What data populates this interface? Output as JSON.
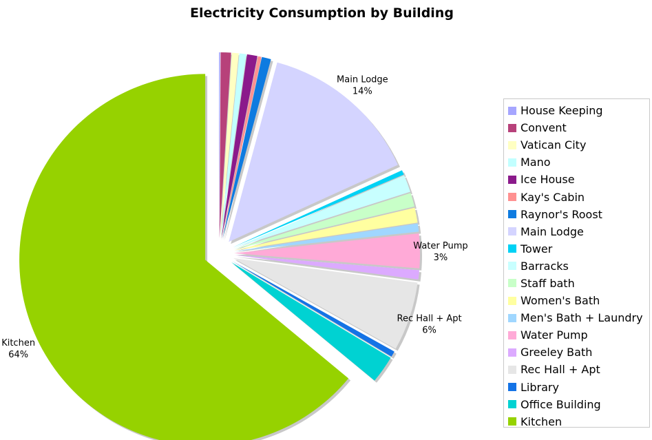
{
  "chart_data": {
    "type": "pie",
    "title": "Electricity Consumption by Building",
    "legend_position": "right",
    "slices": [
      {
        "label": "House Keeping",
        "value": 0.1,
        "color": "#a6a6ff"
      },
      {
        "label": "Convent",
        "value": 0.9,
        "color": "#b7417a"
      },
      {
        "label": "Vatican City",
        "value": 0.6,
        "color": "#ffffc2"
      },
      {
        "label": "Mano",
        "value": 0.6,
        "color": "#c2ffff"
      },
      {
        "label": "Ice House",
        "value": 0.9,
        "color": "#8b1a8b"
      },
      {
        "label": "Kay's Cabin",
        "value": 0.3,
        "color": "#ff9191"
      },
      {
        "label": "Raynor's Roost",
        "value": 0.8,
        "color": "#0e7be0"
      },
      {
        "label": "Main Lodge",
        "value": 14,
        "color": "#d4d4ff"
      },
      {
        "label": "Tower",
        "value": 0.4,
        "color": "#00d2f5"
      },
      {
        "label": "Barracks",
        "value": 1.5,
        "color": "#c8ffff"
      },
      {
        "label": "Staff bath",
        "value": 1.2,
        "color": "#c8ffc8"
      },
      {
        "label": "Women's Bath",
        "value": 1.3,
        "color": "#ffffa0"
      },
      {
        "label": "Men's Bath + Laundry",
        "value": 0.7,
        "color": "#a0d7ff"
      },
      {
        "label": "Water Pump",
        "value": 3,
        "color": "#ffaad7"
      },
      {
        "label": "Greeley Bath",
        "value": 0.8,
        "color": "#dcaaff"
      },
      {
        "label": "Rec Hall + Apt",
        "value": 6,
        "color": "#e6e6e6"
      },
      {
        "label": "Library",
        "value": 0.5,
        "color": "#1473e6"
      },
      {
        "label": "Office Building",
        "value": 2.4,
        "color": "#00d2d2"
      },
      {
        "label": "Kitchen",
        "value": 64,
        "color": "#96d200"
      }
    ],
    "data_labels": [
      {
        "label": "Main Lodge",
        "percent": "14%"
      },
      {
        "label": "Water Pump",
        "percent": "3%"
      },
      {
        "label": "Rec Hall + Apt",
        "percent": "6%"
      },
      {
        "label": "Kitchen",
        "percent": "64%"
      }
    ]
  }
}
